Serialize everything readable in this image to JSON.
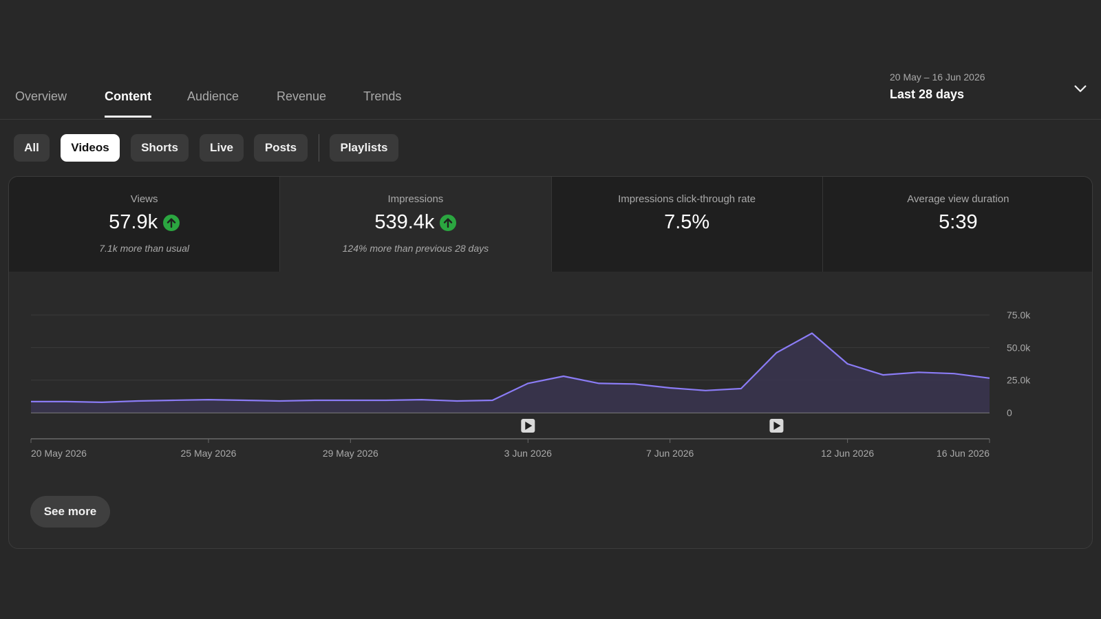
{
  "tabs": [
    {
      "label": "Overview",
      "active": false
    },
    {
      "label": "Content",
      "active": true
    },
    {
      "label": "Audience",
      "active": false
    },
    {
      "label": "Revenue",
      "active": false
    },
    {
      "label": "Trends",
      "active": false
    }
  ],
  "date_picker": {
    "range": "20 May – 16 Jun 2026",
    "label": "Last 28 days",
    "icon": "chevron-down-icon"
  },
  "chips": [
    {
      "label": "All",
      "selected": false
    },
    {
      "label": "Videos",
      "selected": true
    },
    {
      "label": "Shorts",
      "selected": false
    },
    {
      "label": "Live",
      "selected": false
    },
    {
      "label": "Posts",
      "selected": false
    },
    {
      "label": "Playlists",
      "selected": false
    }
  ],
  "metrics": [
    {
      "label": "Views",
      "value": "57.9k",
      "trend": "up",
      "note": "7.1k more than usual"
    },
    {
      "label": "Impressions",
      "value": "539.4k",
      "trend": "up",
      "note": "124% more than previous 28 days"
    },
    {
      "label": "Impressions click-through rate",
      "value": "7.5%",
      "trend": "",
      "note": ""
    },
    {
      "label": "Average view duration",
      "value": "5:39",
      "trend": "",
      "note": ""
    }
  ],
  "colors": {
    "line": "#8b7cf6",
    "fill": "#3a3550",
    "up_badge": "#2ba640",
    "background": "#282828"
  },
  "chart_data": {
    "type": "area",
    "x": [
      "20 May 2026",
      "21 May 2026",
      "22 May 2026",
      "23 May 2026",
      "24 May 2026",
      "25 May 2026",
      "26 May 2026",
      "27 May 2026",
      "28 May 2026",
      "29 May 2026",
      "30 May 2026",
      "31 May 2026",
      "1 Jun 2026",
      "2 Jun 2026",
      "3 Jun 2026",
      "4 Jun 2026",
      "5 Jun 2026",
      "6 Jun 2026",
      "7 Jun 2026",
      "8 Jun 2026",
      "9 Jun 2026",
      "10 Jun 2026",
      "11 Jun 2026",
      "12 Jun 2026",
      "13 Jun 2026",
      "14 Jun 2026",
      "15 Jun 2026",
      "16 Jun 2026"
    ],
    "series": [
      {
        "values": [
          8500,
          8500,
          8000,
          9000,
          9500,
          10000,
          9500,
          9000,
          9500,
          9500,
          9500,
          10000,
          9000,
          9500,
          22500,
          28000,
          22500,
          22000,
          19000,
          17000,
          18500,
          46000,
          61000,
          37500,
          29000,
          31000,
          30000,
          26500
        ]
      }
    ],
    "x_tick_labels": [
      "20 May 2026",
      "25 May 2026",
      "29 May 2026",
      "3 Jun 2026",
      "7 Jun 2026",
      "12 Jun 2026",
      "16 Jun 2026"
    ],
    "y_tick_labels": [
      "75.0k",
      "50.0k",
      "25.0k",
      "0"
    ],
    "y_ticks": [
      75000,
      50000,
      25000,
      0
    ],
    "ylim": [
      0,
      75000
    ],
    "grid": true,
    "video_markers": [
      "3 Jun 2026",
      "10 Jun 2026"
    ],
    "marker_icon": "play-icon"
  },
  "see_more": "See more"
}
